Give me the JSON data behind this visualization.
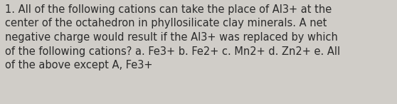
{
  "lines": [
    "1. All of the following cations can take the place of Al3+ at the",
    "center of the octahedron in phyllosilicate clay minerals. A net",
    "negative charge would result if the Al3+ was replaced by which",
    "of the following cations? a. Fe3+ b. Fe2+ c. Mn2+ d. Zn2+ e. All",
    "of the above except A, Fe3+"
  ],
  "background_color": "#d0cdc8",
  "text_color": "#2b2b2b",
  "font_size": 10.5,
  "fig_width": 5.58,
  "fig_height": 1.46,
  "dpi": 100
}
